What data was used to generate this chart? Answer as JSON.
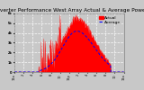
{
  "title": "Solar PV/Inverter Performance West Array Actual & Average Power Output",
  "bg_color": "#c8c8c8",
  "plot_bg_color": "#c8c8c8",
  "grid_color": "#ffffff",
  "actual_color": "#ff0000",
  "average_color": "#0000ff",
  "ylim": [
    0,
    6000
  ],
  "yticks": [
    0,
    1000,
    2000,
    3000,
    4000,
    5000,
    6000
  ],
  "ytick_labels_right": [
    "0",
    "1k",
    "2k",
    "3k",
    "4k",
    "5k",
    "6k"
  ],
  "num_points": 288,
  "title_fontsize": 4.2,
  "tick_fontsize": 2.8,
  "legend_fontsize": 3.2,
  "peak_actual": 5500,
  "peak_average": 4200
}
